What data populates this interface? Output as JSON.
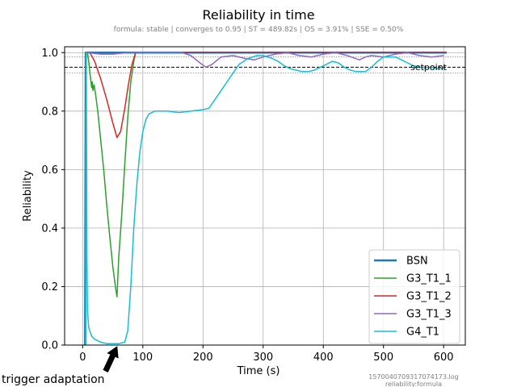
{
  "chart_data": {
    "type": "line",
    "title": "Reliability in time",
    "subtitle": "formula: stable | converges to 0.95 | ST = 489.82s | OS = 3.91% | SSE = 0.50%",
    "xlabel": "Time (s)",
    "ylabel": "Reliability",
    "xlim": [
      -30,
      636
    ],
    "ylim": [
      0,
      1.02
    ],
    "xticks": [
      0,
      100,
      200,
      300,
      400,
      500,
      600
    ],
    "yticks": [
      0.0,
      0.2,
      0.4,
      0.6,
      0.8,
      1.0
    ],
    "grid": true,
    "legend_position": "bottom-right",
    "setpoint": {
      "label": "setpoint",
      "value": 0.95,
      "upper": 0.985,
      "lower": 0.93
    },
    "annotation": {
      "text": "trigger adaptation",
      "x": 57,
      "y": 0.0
    },
    "footer": [
      "1570040709317074173.log",
      "reliability:formula"
    ],
    "series": [
      {
        "name": "BSN",
        "color": "#1f77b4",
        "width": 2.5,
        "points": [
          [
            4,
            0
          ],
          [
            5,
            1.0
          ],
          [
            605,
            1.0
          ]
        ]
      },
      {
        "name": "G3_T1_1",
        "color": "#2ca02c",
        "width": 1.5,
        "points": [
          [
            5,
            0
          ],
          [
            6,
            1.0
          ],
          [
            8,
            1.0
          ],
          [
            10,
            0.97
          ],
          [
            12,
            0.93
          ],
          [
            15,
            0.88
          ],
          [
            16,
            0.9
          ],
          [
            17,
            0.87
          ],
          [
            19,
            0.89
          ],
          [
            22,
            0.85
          ],
          [
            25,
            0.8
          ],
          [
            30,
            0.7
          ],
          [
            35,
            0.6
          ],
          [
            40,
            0.48
          ],
          [
            45,
            0.37
          ],
          [
            50,
            0.27
          ],
          [
            55,
            0.19
          ],
          [
            57,
            0.165
          ],
          [
            60,
            0.3
          ],
          [
            65,
            0.45
          ],
          [
            70,
            0.62
          ],
          [
            75,
            0.78
          ],
          [
            80,
            0.9
          ],
          [
            85,
            0.97
          ],
          [
            88,
            1.0
          ],
          [
            605,
            1.0
          ]
        ]
      },
      {
        "name": "G3_T1_2",
        "color": "#d62728",
        "width": 1.5,
        "points": [
          [
            5,
            0
          ],
          [
            6,
            1.0
          ],
          [
            12,
            1.0
          ],
          [
            20,
            0.97
          ],
          [
            30,
            0.91
          ],
          [
            40,
            0.84
          ],
          [
            50,
            0.76
          ],
          [
            57,
            0.71
          ],
          [
            63,
            0.73
          ],
          [
            70,
            0.81
          ],
          [
            76,
            0.89
          ],
          [
            82,
            0.96
          ],
          [
            88,
            1.0
          ],
          [
            605,
            1.0
          ]
        ]
      },
      {
        "name": "G3_T1_3",
        "color": "#9467bd",
        "width": 1.5,
        "points": [
          [
            5,
            0
          ],
          [
            6,
            1.0
          ],
          [
            30,
            0.995
          ],
          [
            50,
            0.995
          ],
          [
            75,
            1.0
          ],
          [
            165,
            1.0
          ],
          [
            180,
            0.99
          ],
          [
            195,
            0.965
          ],
          [
            205,
            0.95
          ],
          [
            215,
            0.96
          ],
          [
            230,
            0.985
          ],
          [
            250,
            0.99
          ],
          [
            270,
            0.98
          ],
          [
            285,
            0.975
          ],
          [
            300,
            0.985
          ],
          [
            320,
            0.995
          ],
          [
            340,
            1.0
          ],
          [
            360,
            0.99
          ],
          [
            380,
            0.985
          ],
          [
            400,
            0.995
          ],
          [
            420,
            1.0
          ],
          [
            440,
            0.99
          ],
          [
            460,
            0.975
          ],
          [
            470,
            0.985
          ],
          [
            480,
            0.99
          ],
          [
            500,
            0.985
          ],
          [
            520,
            0.995
          ],
          [
            540,
            1.0
          ],
          [
            560,
            0.99
          ],
          [
            580,
            0.985
          ],
          [
            600,
            0.99
          ]
        ]
      },
      {
        "name": "G4_T1",
        "color": "#17becf",
        "width": 1.5,
        "points": [
          [
            5,
            0
          ],
          [
            6,
            1.0
          ],
          [
            7,
            0.3
          ],
          [
            8,
            0.12
          ],
          [
            10,
            0.06
          ],
          [
            15,
            0.03
          ],
          [
            20,
            0.02
          ],
          [
            30,
            0.01
          ],
          [
            40,
            0.005
          ],
          [
            50,
            0.005
          ],
          [
            60,
            0.005
          ],
          [
            70,
            0.01
          ],
          [
            75,
            0.05
          ],
          [
            80,
            0.2
          ],
          [
            85,
            0.4
          ],
          [
            90,
            0.55
          ],
          [
            95,
            0.66
          ],
          [
            100,
            0.73
          ],
          [
            105,
            0.77
          ],
          [
            110,
            0.79
          ],
          [
            120,
            0.8
          ],
          [
            140,
            0.8
          ],
          [
            160,
            0.795
          ],
          [
            180,
            0.8
          ],
          [
            200,
            0.805
          ],
          [
            210,
            0.81
          ],
          [
            220,
            0.84
          ],
          [
            230,
            0.87
          ],
          [
            240,
            0.9
          ],
          [
            250,
            0.93
          ],
          [
            260,
            0.96
          ],
          [
            275,
            0.98
          ],
          [
            290,
            0.99
          ],
          [
            300,
            0.99
          ],
          [
            315,
            0.98
          ],
          [
            325,
            0.97
          ],
          [
            335,
            0.955
          ],
          [
            345,
            0.945
          ],
          [
            355,
            0.94
          ],
          [
            365,
            0.935
          ],
          [
            375,
            0.935
          ],
          [
            385,
            0.94
          ],
          [
            395,
            0.95
          ],
          [
            405,
            0.96
          ],
          [
            415,
            0.97
          ],
          [
            425,
            0.965
          ],
          [
            435,
            0.95
          ],
          [
            445,
            0.94
          ],
          [
            455,
            0.935
          ],
          [
            470,
            0.935
          ],
          [
            480,
            0.95
          ],
          [
            490,
            0.97
          ],
          [
            500,
            0.985
          ],
          [
            510,
            0.985
          ],
          [
            520,
            0.985
          ],
          [
            530,
            0.975
          ],
          [
            540,
            0.965
          ],
          [
            550,
            0.955
          ],
          [
            560,
            0.95
          ],
          [
            570,
            0.948
          ],
          [
            580,
            0.95
          ],
          [
            590,
            0.945
          ],
          [
            600,
            0.945
          ]
        ]
      }
    ]
  }
}
